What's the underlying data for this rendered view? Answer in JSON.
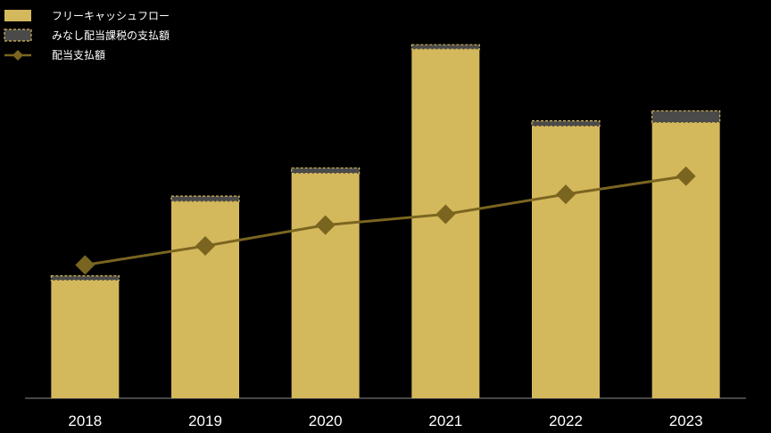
{
  "chart_data": {
    "type": "bar",
    "categories": [
      "2018",
      "2019",
      "2020",
      "2021",
      "2022",
      "2023"
    ],
    "series": [
      {
        "name": "フリーキャッシュフロー",
        "kind": "bar",
        "color": "#d4b85c",
        "values": [
          130,
          217,
          248,
          385,
          300,
          304
        ]
      },
      {
        "name": "みなし配当課税の支払額",
        "kind": "stacked-bar",
        "color": "#4a4a4a",
        "values": [
          5,
          6,
          6,
          5,
          6,
          13
        ]
      },
      {
        "name": "配当支払額",
        "kind": "line",
        "color": "#7a6520",
        "values": [
          147,
          168,
          191,
          203,
          225,
          245
        ]
      }
    ],
    "ylim": [
      0,
      400
    ],
    "legend_position": "top-left",
    "grid": false
  }
}
